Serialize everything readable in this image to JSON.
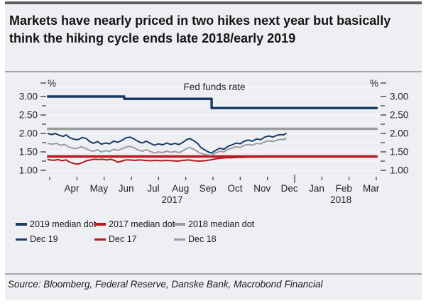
{
  "header": {
    "title": "Markets have nearly priced in two hikes next year but basically think the hiking cycle ends late 2018/early 2019"
  },
  "colors": {
    "navy": "#1a3c64",
    "red": "#b7191f",
    "gray": "#9b9c9e",
    "grid": "#fafbfd",
    "axis_text": "#222222",
    "tick": "#3a3a3a",
    "card_bg": "#edeff3",
    "top_bar": "#5f6062",
    "divider": "#a4a5a8"
  },
  "chart_data": {
    "type": "line",
    "title": "Fed funds rate",
    "unit_left": "%",
    "unit_right": "%",
    "ylim": [
      0.9,
      3.4
    ],
    "y_major_ticks": [
      "3.00",
      "2.50",
      "2.00",
      "1.50",
      "1.00"
    ],
    "y_major_values": [
      3.0,
      2.5,
      2.0,
      1.5,
      1.0
    ],
    "y_minor_values": [
      2.75,
      2.25,
      1.75,
      1.25
    ],
    "grid_values": [
      1.0,
      1.25,
      1.5,
      1.75,
      2.0,
      2.25,
      2.5,
      2.75,
      3.0,
      3.25
    ],
    "x_months": [
      "Apr",
      "May",
      "Jun",
      "Jul",
      "Aug",
      "Sep",
      "Oct",
      "Nov",
      "Dec",
      "Jan",
      "Feb",
      "Mar"
    ],
    "x_years": [
      {
        "label": "2017",
        "center_t": 4.5
      },
      {
        "label": "2018",
        "center_t": 10.7
      }
    ],
    "year_boundary_t": 9,
    "series": [
      {
        "name": "2018 median dot",
        "color_key": "gray",
        "width": 3.5,
        "points": [
          [
            -0.1,
            2.125
          ],
          [
            12.05,
            2.125
          ]
        ]
      },
      {
        "name": "2017 median dot",
        "color_key": "red",
        "width": 3.5,
        "points": [
          [
            -0.1,
            1.375
          ],
          [
            12.05,
            1.375
          ]
        ]
      },
      {
        "name": "2019 median dot",
        "color_key": "navy",
        "width": 3.5,
        "points": [
          [
            -0.1,
            3.0
          ],
          [
            2.74,
            3.0
          ],
          [
            2.74,
            2.9375
          ],
          [
            5.95,
            2.9375
          ],
          [
            5.95,
            2.6875
          ],
          [
            12.05,
            2.6875
          ]
        ]
      },
      {
        "name": "Dec 18",
        "color_key": "gray",
        "width": 2,
        "points": [
          [
            -0.08,
            1.73
          ],
          [
            0.1,
            1.71
          ],
          [
            0.25,
            1.73
          ],
          [
            0.4,
            1.68
          ],
          [
            0.55,
            1.7
          ],
          [
            0.7,
            1.63
          ],
          [
            0.85,
            1.6
          ],
          [
            1.0,
            1.59
          ],
          [
            1.15,
            1.64
          ],
          [
            1.3,
            1.6
          ],
          [
            1.45,
            1.55
          ],
          [
            1.6,
            1.51
          ],
          [
            1.75,
            1.56
          ],
          [
            1.9,
            1.5
          ],
          [
            2.05,
            1.53
          ],
          [
            2.2,
            1.51
          ],
          [
            2.35,
            1.57
          ],
          [
            2.5,
            1.54
          ],
          [
            2.65,
            1.58
          ],
          [
            2.8,
            1.63
          ],
          [
            2.95,
            1.65
          ],
          [
            3.1,
            1.61
          ],
          [
            3.25,
            1.55
          ],
          [
            3.4,
            1.52
          ],
          [
            3.55,
            1.56
          ],
          [
            3.7,
            1.51
          ],
          [
            3.85,
            1.47
          ],
          [
            4.0,
            1.5
          ],
          [
            4.15,
            1.48
          ],
          [
            4.3,
            1.52
          ],
          [
            4.45,
            1.49
          ],
          [
            4.6,
            1.51
          ],
          [
            4.75,
            1.48
          ],
          [
            4.9,
            1.53
          ],
          [
            5.05,
            1.6
          ],
          [
            5.15,
            1.62
          ],
          [
            5.3,
            1.57
          ],
          [
            5.45,
            1.5
          ],
          [
            5.6,
            1.45
          ],
          [
            5.8,
            1.42
          ],
          [
            5.95,
            1.41
          ],
          [
            6.1,
            1.47
          ],
          [
            6.25,
            1.52
          ],
          [
            6.4,
            1.5
          ],
          [
            6.55,
            1.57
          ],
          [
            6.7,
            1.6
          ],
          [
            6.85,
            1.64
          ],
          [
            7.0,
            1.62
          ],
          [
            7.15,
            1.68
          ],
          [
            7.3,
            1.7
          ],
          [
            7.45,
            1.68
          ],
          [
            7.6,
            1.73
          ],
          [
            7.75,
            1.72
          ],
          [
            7.9,
            1.77
          ],
          [
            8.05,
            1.8
          ],
          [
            8.2,
            1.78
          ],
          [
            8.35,
            1.82
          ],
          [
            8.5,
            1.84
          ],
          [
            8.6,
            1.83
          ],
          [
            8.7,
            1.87
          ]
        ]
      },
      {
        "name": "Dec 17",
        "color_key": "red",
        "width": 2,
        "points": [
          [
            -0.08,
            1.29
          ],
          [
            0.15,
            1.27
          ],
          [
            0.3,
            1.29
          ],
          [
            0.45,
            1.26
          ],
          [
            0.6,
            1.28
          ],
          [
            0.75,
            1.22
          ],
          [
            0.9,
            1.18
          ],
          [
            1.05,
            1.17
          ],
          [
            1.2,
            1.21
          ],
          [
            1.35,
            1.26
          ],
          [
            1.5,
            1.28
          ],
          [
            1.65,
            1.3
          ],
          [
            1.8,
            1.29
          ],
          [
            1.95,
            1.3
          ],
          [
            2.1,
            1.28
          ],
          [
            2.25,
            1.3
          ],
          [
            2.4,
            1.26
          ],
          [
            2.5,
            1.22
          ],
          [
            2.65,
            1.25
          ],
          [
            2.8,
            1.28
          ],
          [
            2.95,
            1.28
          ],
          [
            3.1,
            1.27
          ],
          [
            3.3,
            1.28
          ],
          [
            3.5,
            1.27
          ],
          [
            3.7,
            1.26
          ],
          [
            3.9,
            1.27
          ],
          [
            4.1,
            1.26
          ],
          [
            4.3,
            1.27
          ],
          [
            4.5,
            1.26
          ],
          [
            4.7,
            1.25
          ],
          [
            4.9,
            1.27
          ],
          [
            5.1,
            1.28
          ],
          [
            5.3,
            1.26
          ],
          [
            5.5,
            1.25
          ],
          [
            5.7,
            1.26
          ],
          [
            5.9,
            1.28
          ],
          [
            6.1,
            1.31
          ],
          [
            6.3,
            1.33
          ],
          [
            6.5,
            1.34
          ],
          [
            6.7,
            1.34
          ],
          [
            6.9,
            1.35
          ],
          [
            7.1,
            1.35
          ],
          [
            7.3,
            1.36
          ],
          [
            7.5,
            1.36
          ],
          [
            7.7,
            1.36
          ],
          [
            7.9,
            1.37
          ],
          [
            8.1,
            1.37
          ],
          [
            8.3,
            1.37
          ],
          [
            8.5,
            1.37
          ],
          [
            8.7,
            1.38
          ]
        ]
      },
      {
        "name": "Dec 19",
        "color_key": "navy",
        "width": 2,
        "points": [
          [
            -0.08,
            2.0
          ],
          [
            0.08,
            1.97
          ],
          [
            0.2,
            2.0
          ],
          [
            0.35,
            1.95
          ],
          [
            0.5,
            1.92
          ],
          [
            0.6,
            1.96
          ],
          [
            0.75,
            1.88
          ],
          [
            0.9,
            1.84
          ],
          [
            1.05,
            1.83
          ],
          [
            1.2,
            1.89
          ],
          [
            1.35,
            1.86
          ],
          [
            1.45,
            1.79
          ],
          [
            1.6,
            1.73
          ],
          [
            1.75,
            1.78
          ],
          [
            1.9,
            1.71
          ],
          [
            2.05,
            1.74
          ],
          [
            2.2,
            1.72
          ],
          [
            2.35,
            1.79
          ],
          [
            2.5,
            1.76
          ],
          [
            2.65,
            1.81
          ],
          [
            2.8,
            1.88
          ],
          [
            2.95,
            1.9
          ],
          [
            3.1,
            1.85
          ],
          [
            3.25,
            1.78
          ],
          [
            3.4,
            1.74
          ],
          [
            3.55,
            1.79
          ],
          [
            3.7,
            1.73
          ],
          [
            3.85,
            1.68
          ],
          [
            4.0,
            1.72
          ],
          [
            4.15,
            1.69
          ],
          [
            4.3,
            1.74
          ],
          [
            4.45,
            1.7
          ],
          [
            4.6,
            1.73
          ],
          [
            4.75,
            1.7
          ],
          [
            4.9,
            1.76
          ],
          [
            5.05,
            1.84
          ],
          [
            5.15,
            1.86
          ],
          [
            5.3,
            1.8
          ],
          [
            5.45,
            1.72
          ],
          [
            5.55,
            1.62
          ],
          [
            5.7,
            1.55
          ],
          [
            5.85,
            1.49
          ],
          [
            5.95,
            1.47
          ],
          [
            6.1,
            1.54
          ],
          [
            6.25,
            1.6
          ],
          [
            6.4,
            1.57
          ],
          [
            6.55,
            1.65
          ],
          [
            6.7,
            1.69
          ],
          [
            6.85,
            1.74
          ],
          [
            7.0,
            1.72
          ],
          [
            7.15,
            1.79
          ],
          [
            7.3,
            1.82
          ],
          [
            7.45,
            1.79
          ],
          [
            7.6,
            1.85
          ],
          [
            7.75,
            1.83
          ],
          [
            7.9,
            1.9
          ],
          [
            8.05,
            1.93
          ],
          [
            8.2,
            1.9
          ],
          [
            8.35,
            1.95
          ],
          [
            8.5,
            1.97
          ],
          [
            8.6,
            1.96
          ],
          [
            8.7,
            2.01
          ]
        ]
      }
    ],
    "legend_position": "bottom-left",
    "grid": true
  },
  "legend": {
    "rows": [
      [
        {
          "label": "2019 median dot",
          "color_key": "navy"
        },
        {
          "label": "2017 median dot",
          "color_key": "red"
        },
        {
          "label": "2018 median dot",
          "color_key": "gray"
        }
      ],
      [
        {
          "label": "Dec 19",
          "color_key": "navy"
        },
        {
          "label": "Dec 17",
          "color_key": "red"
        },
        {
          "label": "Dec 18",
          "color_key": "gray"
        }
      ]
    ]
  },
  "source": {
    "text": "Source: Bloomberg, Federal Reserve, Danske Bank, Macrobond Financial"
  }
}
